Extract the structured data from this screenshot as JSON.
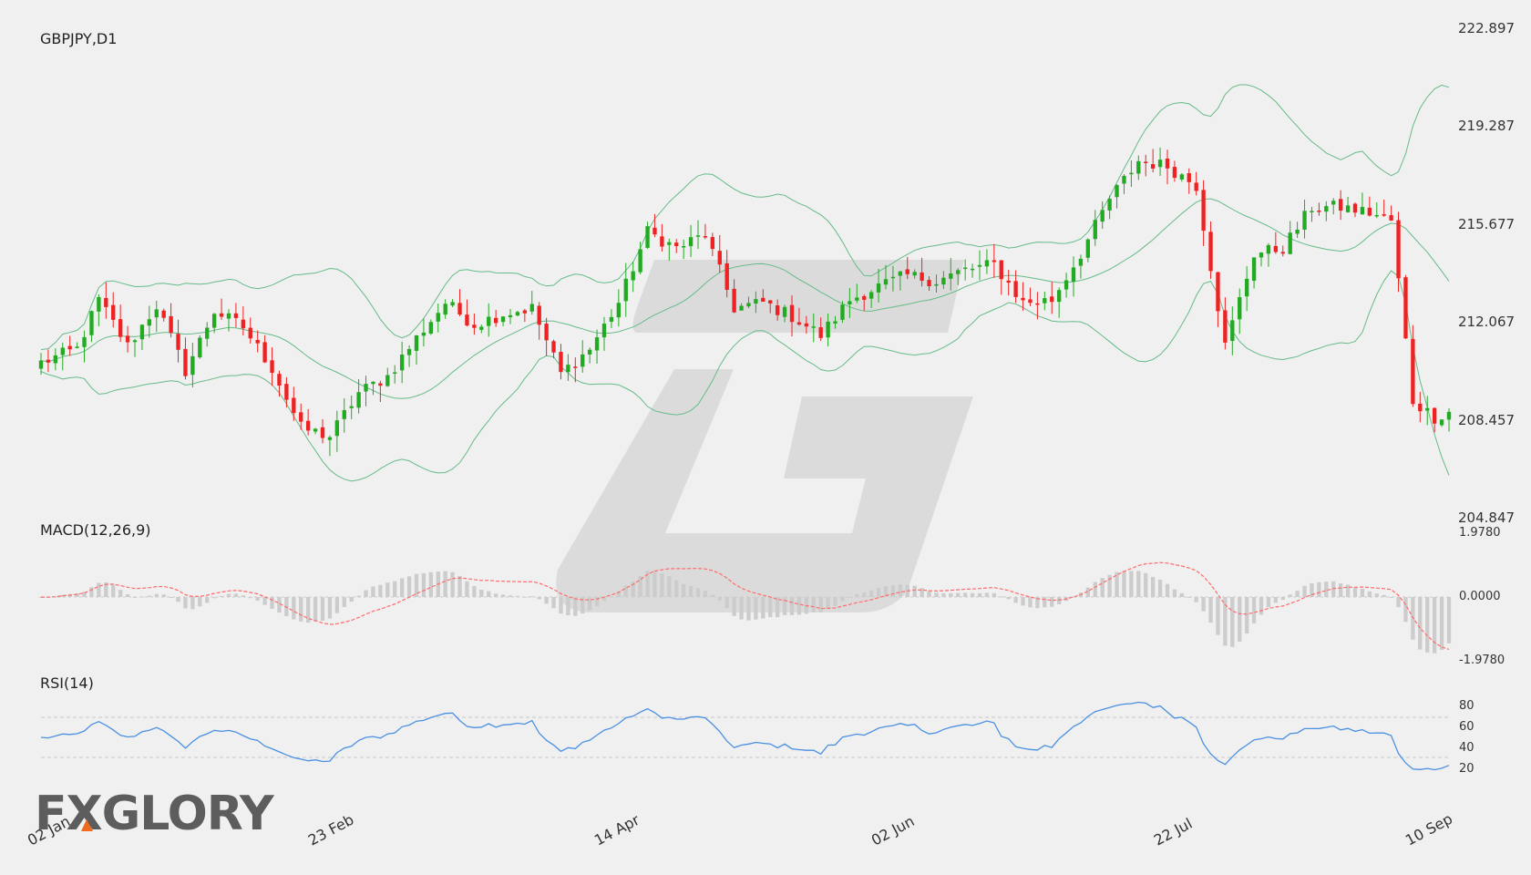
{
  "chart_data": [
    {
      "type": "candlestick",
      "title": "GBPJPY,D1",
      "symbol": "GBPJPY",
      "timeframe": "D1",
      "ylim": [
        204.847,
        222.897
      ],
      "yticks": [
        "222.897",
        "219.287",
        "215.677",
        "212.067",
        "208.457",
        "204.847"
      ],
      "xticks": [
        "02 Jan",
        "23 Feb",
        "14 Apr",
        "02 Jun",
        "22 Jul",
        "10 Sep"
      ],
      "overlay": "Bollinger Bands",
      "up_color": "#22aa22",
      "down_color": "#ee2222",
      "band_color": "#66bb88",
      "close_waypoints": [
        [
          0,
          210.6
        ],
        [
          5,
          211.1
        ],
        [
          8,
          212.9
        ],
        [
          12,
          211.2
        ],
        [
          16,
          212.7
        ],
        [
          20,
          210.3
        ],
        [
          24,
          212.5
        ],
        [
          28,
          211.9
        ],
        [
          32,
          210.4
        ],
        [
          36,
          208.2
        ],
        [
          40,
          207.9
        ],
        [
          44,
          209.5
        ],
        [
          48,
          210.1
        ],
        [
          52,
          211.5
        ],
        [
          56,
          212.8
        ],
        [
          60,
          212.0
        ],
        [
          64,
          212.4
        ],
        [
          68,
          212.6
        ],
        [
          72,
          210.2
        ],
        [
          76,
          211.1
        ],
        [
          80,
          212.8
        ],
        [
          84,
          215.4
        ],
        [
          88,
          214.8
        ],
        [
          92,
          215.3
        ],
        [
          96,
          212.6
        ],
        [
          100,
          212.8
        ],
        [
          104,
          212.3
        ],
        [
          108,
          211.6
        ],
        [
          112,
          212.9
        ],
        [
          116,
          213.4
        ],
        [
          120,
          213.8
        ],
        [
          124,
          213.6
        ],
        [
          128,
          214.0
        ],
        [
          132,
          214.2
        ],
        [
          136,
          212.8
        ],
        [
          140,
          212.9
        ],
        [
          144,
          214.6
        ],
        [
          148,
          216.6
        ],
        [
          152,
          218.0
        ],
        [
          156,
          217.8
        ],
        [
          160,
          217.1
        ],
        [
          164,
          211.2
        ],
        [
          168,
          214.6
        ],
        [
          172,
          214.8
        ],
        [
          176,
          216.3
        ],
        [
          180,
          216.3
        ],
        [
          184,
          216.1
        ],
        [
          187,
          215.8
        ],
        [
          190,
          209.2
        ],
        [
          193,
          208.6
        ],
        [
          195,
          208.8
        ]
      ]
    },
    {
      "type": "line",
      "title": "MACD(12,26,9)",
      "ylim": [
        -1.978,
        1.978
      ],
      "yticks": [
        "1.9780",
        "0.0000",
        "-1.9780"
      ],
      "macd_line_color": "#ff6b6b",
      "histogram_color": "#cccccc"
    },
    {
      "type": "line",
      "title": "RSI(14)",
      "ylim": [
        10,
        90
      ],
      "yticks": [
        "80",
        "60",
        "40",
        "20"
      ],
      "levels": [
        70,
        30
      ],
      "line_color": "#4a90e2"
    }
  ],
  "logo": {
    "text": "FXGLORY",
    "accent_color": "#ee6a1e"
  }
}
